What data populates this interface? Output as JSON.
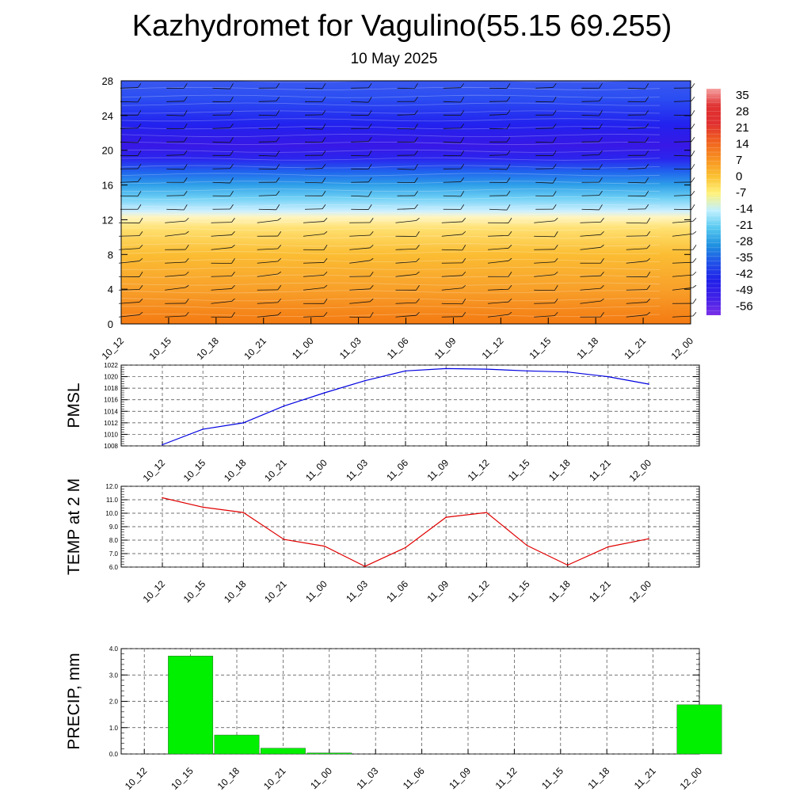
{
  "title": "Kazhydromet for Vagulino(55.15 69.255)",
  "subtitle": "10 May 2025",
  "times": [
    "10_12",
    "10_15",
    "10_18",
    "10_21",
    "11_00",
    "11_03",
    "11_06",
    "11_09",
    "11_12",
    "11_15",
    "11_18",
    "11_21",
    "12_00"
  ],
  "chart_data": [
    {
      "type": "heatmap",
      "name": "vertical-profile",
      "y_ticks": [
        "0",
        "4",
        "8",
        "12",
        "16",
        "20",
        "24",
        "28"
      ],
      "ylim": [
        0,
        28
      ],
      "x": [
        "10_12",
        "10_15",
        "10_18",
        "10_21",
        "11_00",
        "11_03",
        "11_06",
        "11_09",
        "11_12",
        "11_15",
        "11_18",
        "11_21",
        "12_00"
      ],
      "colorbar": {
        "labels": [
          "35",
          "28",
          "21",
          "14",
          "7",
          "0",
          "-7",
          "-14",
          "-21",
          "-28",
          "-35",
          "-42",
          "-49",
          "-56"
        ],
        "colors": [
          "#f5a0a0",
          "#e03030",
          "#e03030",
          "#f06020",
          "#f89020",
          "#fbbf30",
          "#fff27a",
          "#bff0ff",
          "#56c8f0",
          "#1e90e0",
          "#2050e8",
          "#2020e8",
          "#4020e8",
          "#7a30e8"
        ]
      },
      "vertical_profile": [
        {
          "level": 0,
          "color": "#f47a12"
        },
        {
          "level": 4,
          "color": "#f8a02a"
        },
        {
          "level": 8,
          "color": "#fbbd33"
        },
        {
          "level": 11,
          "color": "#ffe070"
        },
        {
          "level": 12.3,
          "color": "#fff5c0"
        },
        {
          "level": 13,
          "color": "#cdefff"
        },
        {
          "level": 14.5,
          "color": "#6fd0f5"
        },
        {
          "level": 16,
          "color": "#2e9fe8"
        },
        {
          "level": 17.5,
          "color": "#2065ee"
        },
        {
          "level": 19,
          "color": "#2a25ee"
        },
        {
          "level": 20.5,
          "color": "#3818e6"
        },
        {
          "level": 23,
          "color": "#2222ee"
        },
        {
          "level": 26,
          "color": "#2b4ef2"
        },
        {
          "level": 28,
          "color": "#3a58f0"
        }
      ],
      "wind_barbs": "black"
    },
    {
      "type": "line",
      "name": "pmsl",
      "ylabel": "PMSL",
      "x": [
        "10_12",
        "10_15",
        "10_18",
        "10_21",
        "11_00",
        "11_03",
        "11_06",
        "11_09",
        "11_12",
        "11_15",
        "11_18",
        "11_21",
        "12_00"
      ],
      "y_ticks": [
        "1008",
        "1010",
        "1012",
        "1014",
        "1016",
        "1018",
        "1020",
        "1022"
      ],
      "ylim": [
        1008,
        1022
      ],
      "series": [
        {
          "values": [
            1008.2,
            1010.9,
            1012.0,
            1014.9,
            1017.2,
            1019.3,
            1021.0,
            1021.4,
            1021.3,
            1021.0,
            1020.8,
            1020.0,
            1018.7
          ],
          "color": "#0000e0"
        }
      ],
      "grid": true
    },
    {
      "type": "line",
      "name": "temp-2m",
      "ylabel": "TEMP at 2 M",
      "x": [
        "10_12",
        "10_15",
        "10_18",
        "10_21",
        "11_00",
        "11_03",
        "11_06",
        "11_09",
        "11_12",
        "11_15",
        "11_18",
        "11_21",
        "12_00"
      ],
      "y_ticks": [
        "6.0",
        "7.0",
        "8.0",
        "9.0",
        "10.0",
        "11.0",
        "12.0"
      ],
      "ylim": [
        6.0,
        12.0
      ],
      "series": [
        {
          "values": [
            11.15,
            10.45,
            10.05,
            8.05,
            7.55,
            6.05,
            7.45,
            9.7,
            10.05,
            7.6,
            6.15,
            7.5,
            8.1
          ],
          "color": "#e00000"
        }
      ],
      "grid": true
    },
    {
      "type": "bar",
      "name": "precip",
      "ylabel": "PRECIP, mm",
      "categories": [
        "10_12",
        "10_15",
        "10_18",
        "10_21",
        "11_00",
        "11_03",
        "11_06",
        "11_09",
        "11_12",
        "11_15",
        "11_18",
        "11_21",
        "12_00"
      ],
      "y_ticks": [
        "0.0",
        "1.0",
        "2.0",
        "3.0",
        "4.0"
      ],
      "ylim": [
        0,
        4.0
      ],
      "values": [
        0,
        3.72,
        0.72,
        0.22,
        0.04,
        0,
        0,
        0,
        0,
        0,
        0,
        0,
        1.87
      ],
      "color": "#00f000",
      "grid": true
    }
  ]
}
